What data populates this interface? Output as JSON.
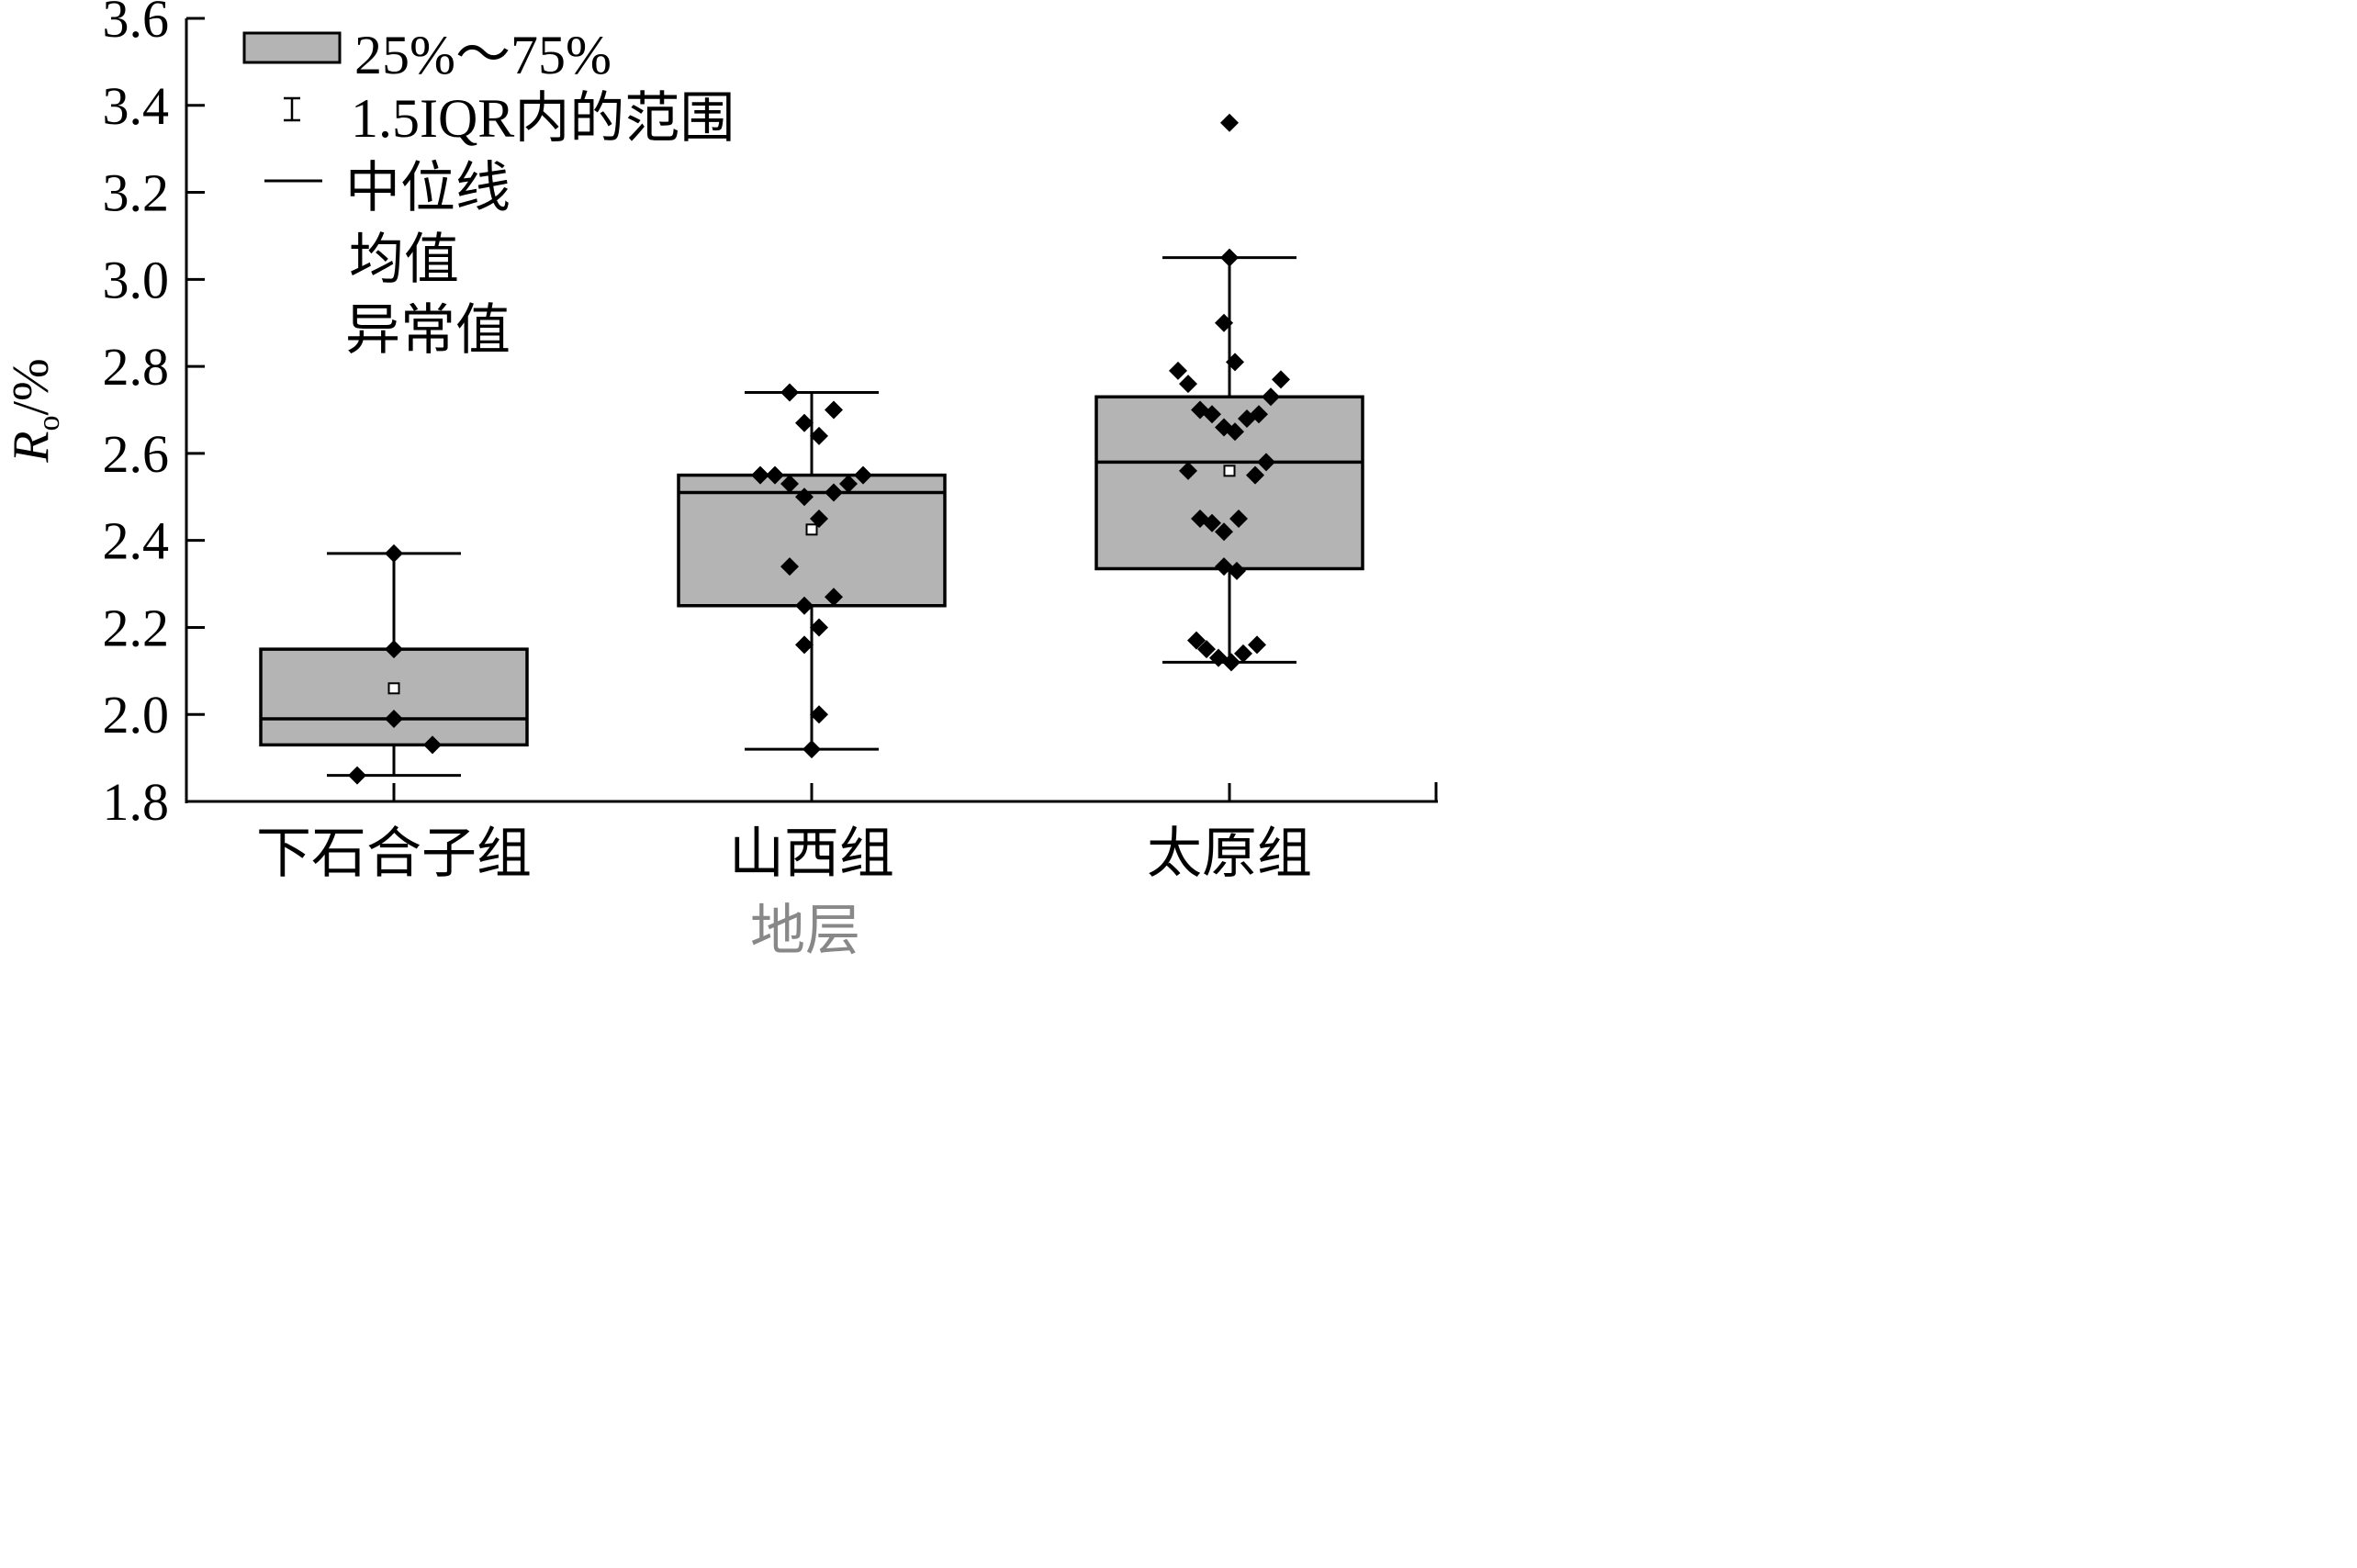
{
  "chart_data": {
    "type": "box",
    "ylabel": {
      "main": "R",
      "sub": "o",
      "rest": "/%"
    },
    "xlabel": "地层",
    "ylim": [
      1.8,
      3.6
    ],
    "yticks": [
      "1.8",
      "2.0",
      "2.2",
      "2.4",
      "2.6",
      "2.8",
      "3.0",
      "3.2",
      "3.4",
      "3.6"
    ],
    "grid": false,
    "legend_position": "top-left",
    "legend": [
      {
        "key": "box",
        "label": "25%～75%"
      },
      {
        "key": "whisker",
        "label": "1.5IQR内的范围"
      },
      {
        "key": "median",
        "label": "中位线"
      },
      {
        "key": "mean",
        "label": "均值"
      },
      {
        "key": "outlier",
        "label": "异常值"
      }
    ],
    "box_fill": "#b4b4b4",
    "categories": [
      "下石合子组",
      "山西组",
      "太原组"
    ],
    "groups": [
      {
        "category": "下石合子组",
        "q1": 1.93,
        "median": 1.99,
        "q3": 2.15,
        "whisker_low": 1.86,
        "whisker_high": 2.37,
        "mean": 2.06,
        "points": [
          [
            -0.4,
            1.86
          ],
          [
            0.0,
            2.37
          ],
          [
            0.0,
            2.15
          ],
          [
            0.0,
            1.99
          ],
          [
            0.42,
            1.93
          ]
        ]
      },
      {
        "category": "山西组",
        "q1": 2.25,
        "median": 2.51,
        "q3": 2.55,
        "whisker_low": 1.92,
        "whisker_high": 2.74,
        "mean": 2.425,
        "points": [
          [
            -0.24,
            2.74
          ],
          [
            -0.08,
            2.67
          ],
          [
            0.08,
            2.64
          ],
          [
            0.24,
            2.7
          ],
          [
            -0.56,
            2.55
          ],
          [
            -0.4,
            2.55
          ],
          [
            -0.24,
            2.53
          ],
          [
            -0.08,
            2.5
          ],
          [
            0.24,
            2.51
          ],
          [
            0.4,
            2.53
          ],
          [
            0.56,
            2.55
          ],
          [
            0.08,
            2.45
          ],
          [
            -0.24,
            2.34
          ],
          [
            0.24,
            2.27
          ],
          [
            -0.08,
            2.25
          ],
          [
            0.08,
            2.2
          ],
          [
            -0.08,
            2.16
          ],
          [
            0.08,
            2.0
          ],
          [
            0.0,
            1.92
          ]
        ]
      },
      {
        "category": "太原组",
        "q1": 2.335,
        "median": 2.58,
        "q3": 2.73,
        "whisker_low": 2.12,
        "whisker_high": 3.05,
        "mean": 2.56,
        "points": [
          [
            0.0,
            3.36
          ],
          [
            0.0,
            3.05
          ],
          [
            -0.06,
            2.9
          ],
          [
            0.06,
            2.81
          ],
          [
            -0.56,
            2.79
          ],
          [
            -0.45,
            2.76
          ],
          [
            0.45,
            2.73
          ],
          [
            0.56,
            2.77
          ],
          [
            -0.32,
            2.7
          ],
          [
            -0.19,
            2.69
          ],
          [
            -0.06,
            2.66
          ],
          [
            0.06,
            2.65
          ],
          [
            0.19,
            2.68
          ],
          [
            0.32,
            2.69
          ],
          [
            -0.45,
            2.56
          ],
          [
            0.28,
            2.55
          ],
          [
            0.4,
            2.58
          ],
          [
            -0.32,
            2.45
          ],
          [
            -0.19,
            2.44
          ],
          [
            -0.06,
            2.42
          ],
          [
            0.1,
            2.45
          ],
          [
            -0.06,
            2.34
          ],
          [
            0.08,
            2.33
          ],
          [
            -0.36,
            2.17
          ],
          [
            -0.25,
            2.15
          ],
          [
            -0.12,
            2.13
          ],
          [
            0.02,
            2.12
          ],
          [
            0.15,
            2.14
          ],
          [
            0.3,
            2.16
          ]
        ]
      }
    ]
  }
}
